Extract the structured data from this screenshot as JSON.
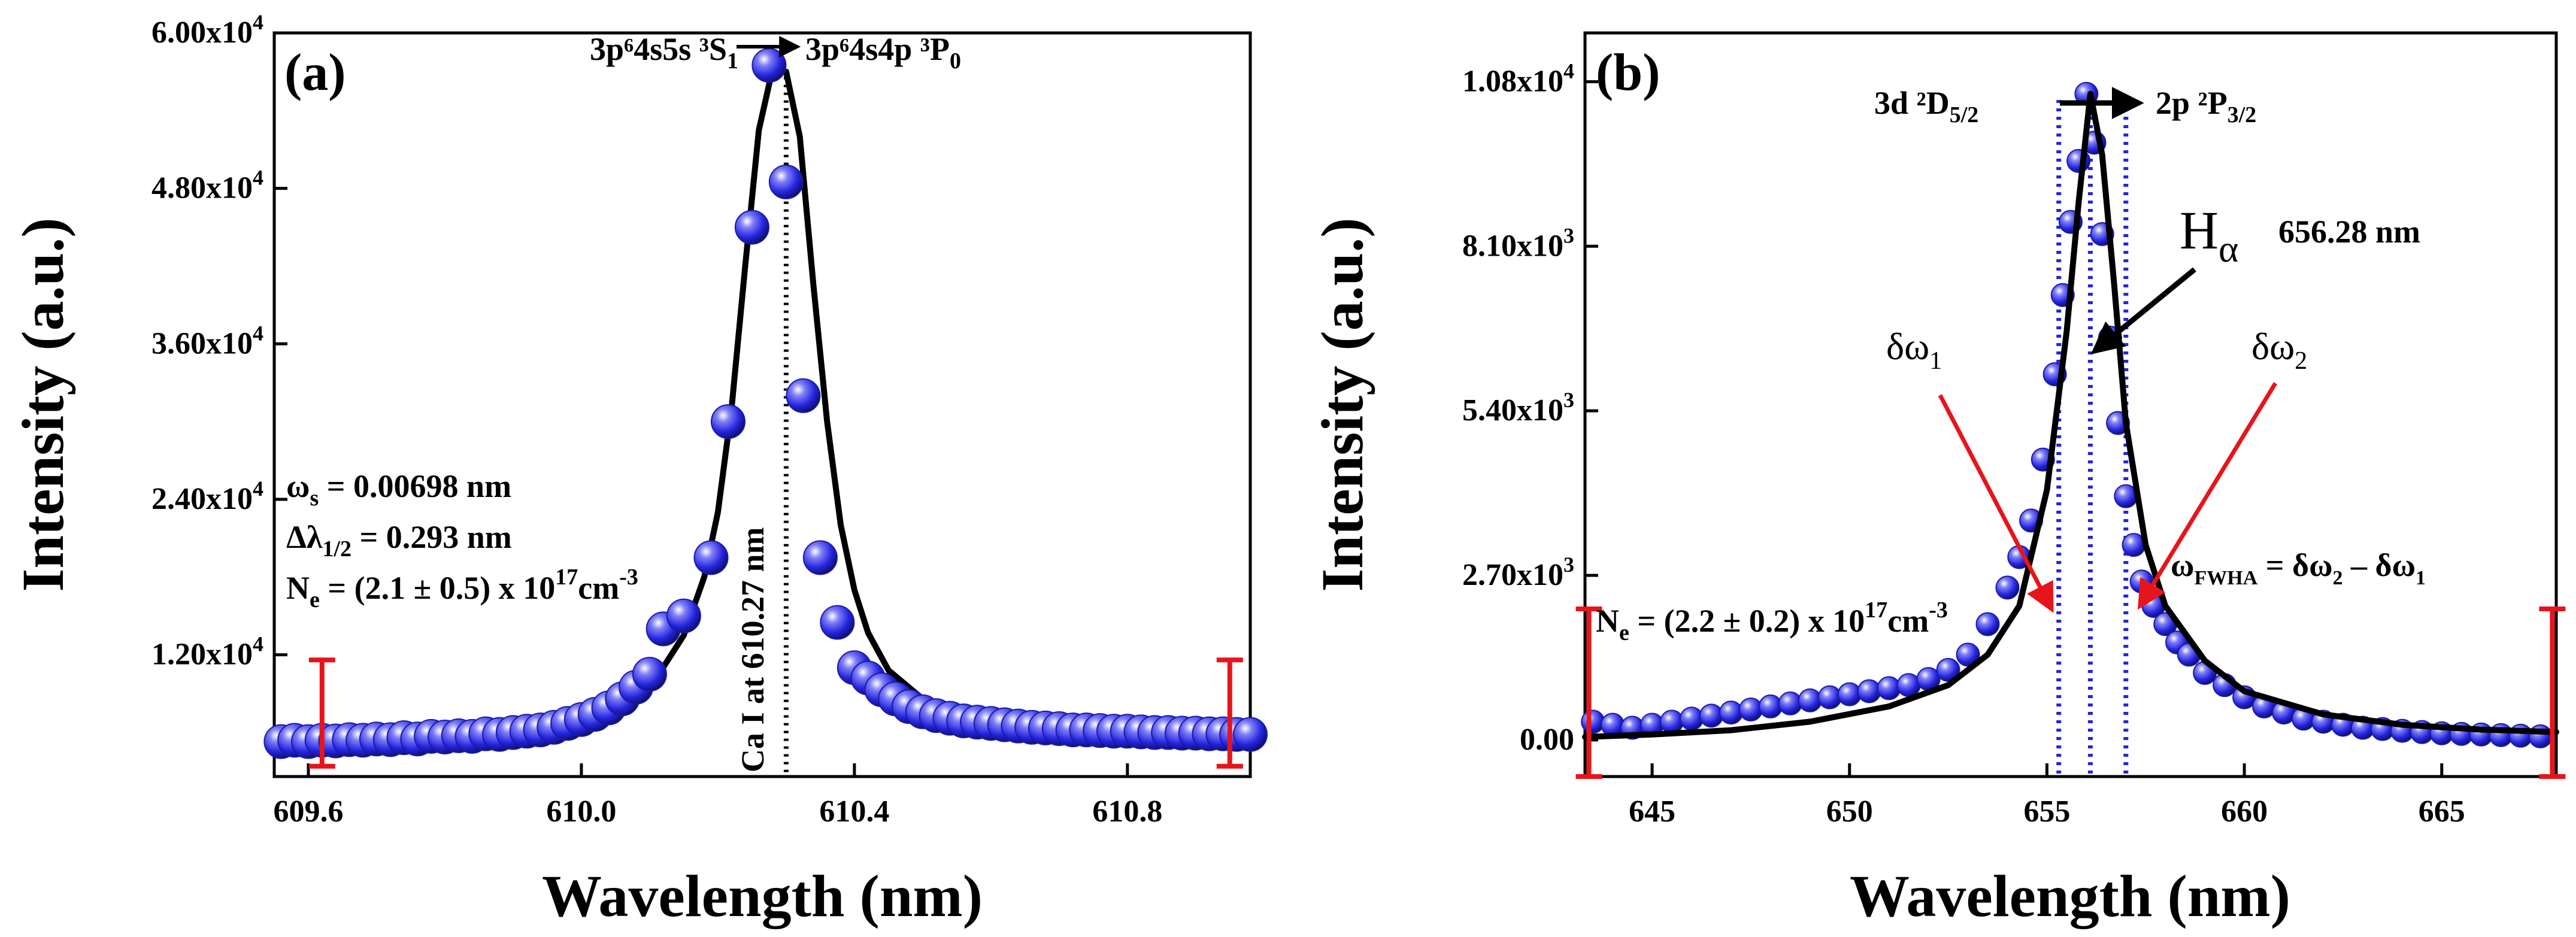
{
  "chart_data": [
    {
      "type": "scatter",
      "panel_label": "(a)",
      "xlabel": "Wavelength (nm)",
      "ylabel": "Intensity (a.u.)",
      "xlim": [
        609.55,
        610.98
      ],
      "ylim": [
        2600,
        60000
      ],
      "x_ticks": [
        609.6,
        610.0,
        610.4,
        610.8
      ],
      "x_tick_labels": [
        "609.6",
        "610.0",
        "610.4",
        "610.8"
      ],
      "y_ticks": [
        12000,
        24000,
        36000,
        48000,
        60000
      ],
      "y_tick_labels": [
        {
          "mant": "1.20x10",
          "exp": "4"
        },
        {
          "mant": "2.40x10",
          "exp": "4"
        },
        {
          "mant": "3.60x10",
          "exp": "4"
        },
        {
          "mant": "4.80x10",
          "exp": "4"
        },
        {
          "mant": "6.00x10",
          "exp": "4"
        }
      ],
      "grid": false,
      "series": [
        {
          "kind": "markers",
          "color": "#2424e0",
          "x": [
            609.56,
            609.58,
            609.6,
            609.62,
            609.64,
            609.66,
            609.68,
            609.7,
            609.72,
            609.74,
            609.76,
            609.78,
            609.8,
            609.82,
            609.84,
            609.86,
            609.88,
            609.9,
            609.92,
            609.94,
            609.96,
            609.98,
            610.0,
            610.02,
            610.04,
            610.06,
            610.08,
            610.1,
            610.12,
            610.15,
            610.19,
            610.215,
            610.25,
            610.275,
            610.3,
            610.325,
            610.35,
            610.375,
            610.4,
            610.42,
            610.44,
            610.46,
            610.48,
            610.5,
            610.52,
            610.54,
            610.56,
            610.58,
            610.6,
            610.62,
            610.64,
            610.66,
            610.68,
            610.7,
            610.72,
            610.74,
            610.76,
            610.78,
            610.8,
            610.82,
            610.84,
            610.86,
            610.88,
            610.9,
            610.92,
            610.94,
            610.96,
            610.98
          ],
          "y": [
            5300,
            5400,
            5300,
            5400,
            5350,
            5450,
            5400,
            5500,
            5450,
            5600,
            5500,
            5700,
            5650,
            5750,
            5700,
            5900,
            5850,
            6000,
            6100,
            6200,
            6400,
            6700,
            7000,
            7400,
            7900,
            8600,
            9500,
            10500,
            14000,
            15000,
            19500,
            30000,
            45000,
            57500,
            48500,
            32000,
            19500,
            14500,
            11000,
            10200,
            9300,
            8600,
            8000,
            7600,
            7300,
            7100,
            6900,
            6800,
            6700,
            6600,
            6500,
            6400,
            6350,
            6300,
            6200,
            6200,
            6150,
            6100,
            6100,
            6050,
            6000,
            6000,
            5950,
            5950,
            5900,
            5900,
            5850,
            5850
          ]
        },
        {
          "kind": "fit",
          "color": "#000000",
          "x": [
            609.55,
            609.65,
            609.75,
            609.85,
            609.95,
            610.0,
            610.05,
            610.1,
            610.15,
            610.18,
            610.2,
            610.22,
            610.24,
            610.26,
            610.28,
            610.3,
            610.32,
            610.34,
            610.36,
            610.38,
            610.4,
            610.42,
            610.45,
            610.5,
            610.55,
            610.6,
            610.7,
            610.8,
            610.9,
            610.98
          ],
          "y": [
            5200,
            5250,
            5350,
            5600,
            6100,
            6600,
            7500,
            9400,
            13500,
            18000,
            23000,
            31000,
            42000,
            52500,
            57200,
            57000,
            52000,
            40500,
            30000,
            22000,
            17000,
            13700,
            10800,
            8600,
            7400,
            6900,
            6400,
            6100,
            6000,
            5900
          ]
        }
      ],
      "vertical_line": {
        "x": 610.3,
        "label": "Ca I at 610.27 nm"
      },
      "transition": {
        "upper": "3p⁶4s5s ³S",
        "upper_sub": "1",
        "lower": "3p⁶4s4p ³P",
        "lower_sub": "0"
      },
      "annotations": {
        "omega_s": "ω",
        "omega_s_sub": "s",
        "omega_s_val": " = 0.00698 nm",
        "delta_lambda": "Δλ",
        "delta_lambda_sub": "1/2",
        "delta_lambda_val": " = 0.293 nm",
        "ne_pre": "N",
        "ne_sub": "e",
        "ne_val": " = (2.1 ± 0.5) x 10",
        "ne_exp": "17",
        "ne_unit": "cm",
        "ne_unit_exp": "-3"
      },
      "error_bars": [
        {
          "x": 609.62,
          "y_low": 3400,
          "y_high": 11600
        },
        {
          "x": 610.95,
          "y_low": 3400,
          "y_high": 11600
        }
      ]
    },
    {
      "type": "scatter",
      "panel_label": "(b)",
      "xlabel": "Wavelength (nm)",
      "ylabel": "Intensity (a.u.)",
      "xlim": [
        643.3,
        667.9
      ],
      "ylim": [
        -600,
        11600
      ],
      "x_ticks": [
        645,
        650,
        655,
        660,
        665
      ],
      "x_tick_labels": [
        "645",
        "650",
        "655",
        "660",
        "665"
      ],
      "y_ticks": [
        0,
        2700,
        5400,
        8100,
        10800
      ],
      "y_tick_labels": [
        {
          "mant": "0.00",
          "exp": ""
        },
        {
          "mant": "2.70x10",
          "exp": "3"
        },
        {
          "mant": "5.40x10",
          "exp": "3"
        },
        {
          "mant": "8.10x10",
          "exp": "3"
        },
        {
          "mant": "1.08x10",
          "exp": "4"
        }
      ],
      "grid": false,
      "series": [
        {
          "kind": "markers",
          "color": "#2424e0",
          "x": [
            643.5,
            644.0,
            644.5,
            645.0,
            645.5,
            646.0,
            646.5,
            647.0,
            647.5,
            648.0,
            648.5,
            649.0,
            649.5,
            650.0,
            650.5,
            651.0,
            651.5,
            652.0,
            652.5,
            653.0,
            653.5,
            654.0,
            654.3,
            654.6,
            654.9,
            655.2,
            655.4,
            655.6,
            655.8,
            656.0,
            656.2,
            656.4,
            656.6,
            656.8,
            657.0,
            657.2,
            657.4,
            657.7,
            658.0,
            658.3,
            658.6,
            659.0,
            659.5,
            660.0,
            660.5,
            661.0,
            661.5,
            662.0,
            662.5,
            663.0,
            663.5,
            664.0,
            664.5,
            665.0,
            665.5,
            666.0,
            666.5,
            667.0,
            667.5
          ],
          "y": [
            300,
            250,
            200,
            250,
            300,
            350,
            400,
            450,
            500,
            550,
            600,
            650,
            700,
            750,
            800,
            850,
            900,
            1000,
            1150,
            1400,
            1900,
            2500,
            3000,
            3600,
            4600,
            6000,
            7300,
            8500,
            9500,
            10600,
            9800,
            8300,
            6600,
            5200,
            4000,
            3200,
            2600,
            2200,
            1900,
            1600,
            1400,
            1100,
            900,
            700,
            550,
            450,
            350,
            300,
            250,
            200,
            180,
            150,
            130,
            110,
            100,
            90,
            80,
            70,
            60
          ]
        },
        {
          "kind": "fit",
          "color": "#000000",
          "x": [
            643.3,
            645.0,
            647.0,
            649.0,
            651.0,
            652.5,
            653.5,
            654.3,
            655.0,
            655.5,
            655.8,
            656.1,
            656.4,
            656.7,
            657.0,
            657.5,
            658.0,
            659.0,
            660.0,
            662.0,
            664.0,
            666.0,
            667.9
          ],
          "y": [
            50,
            90,
            160,
            300,
            550,
            900,
            1400,
            2200,
            4100,
            6700,
            8800,
            10600,
            9600,
            7500,
            5200,
            3200,
            2200,
            1300,
            800,
            420,
            250,
            170,
            130
          ]
        }
      ],
      "vertical_lines": [
        655.3,
        656.1,
        657.0
      ],
      "transition": {
        "upper": "3d ²D",
        "upper_sub": "5/2",
        "lower": "2p ²P",
        "lower_sub": "3/2"
      },
      "annotations": {
        "halpha": "H",
        "halpha_sub": "α",
        "halpha_nm": "656.28 nm",
        "dw1": "δω",
        "dw1_sub": "1",
        "dw2": "δω",
        "dw2_sub": "2",
        "fwhm_pre": "ω",
        "fwhm_sub": "FWHA",
        "fwhm_mid": " = δω",
        "fwhm_sub2": "2",
        "fwhm_mid2": " – δω",
        "fwhm_sub3": "1",
        "ne_pre": "N",
        "ne_sub": "e",
        "ne_val": " = (2.2 ± 0.2) x 10",
        "ne_exp": "17",
        "ne_unit": "cm",
        "ne_unit_exp": "-3"
      },
      "error_bars": [
        {
          "x": 643.4,
          "y_low": -600,
          "y_high": 2150
        },
        {
          "x": 667.8,
          "y_low": -600,
          "y_high": 2150
        }
      ]
    }
  ],
  "colors": {
    "markers": "#2424e0",
    "fit": "#000000",
    "error_bar": "#e8141b",
    "guide": "#2424e0"
  }
}
